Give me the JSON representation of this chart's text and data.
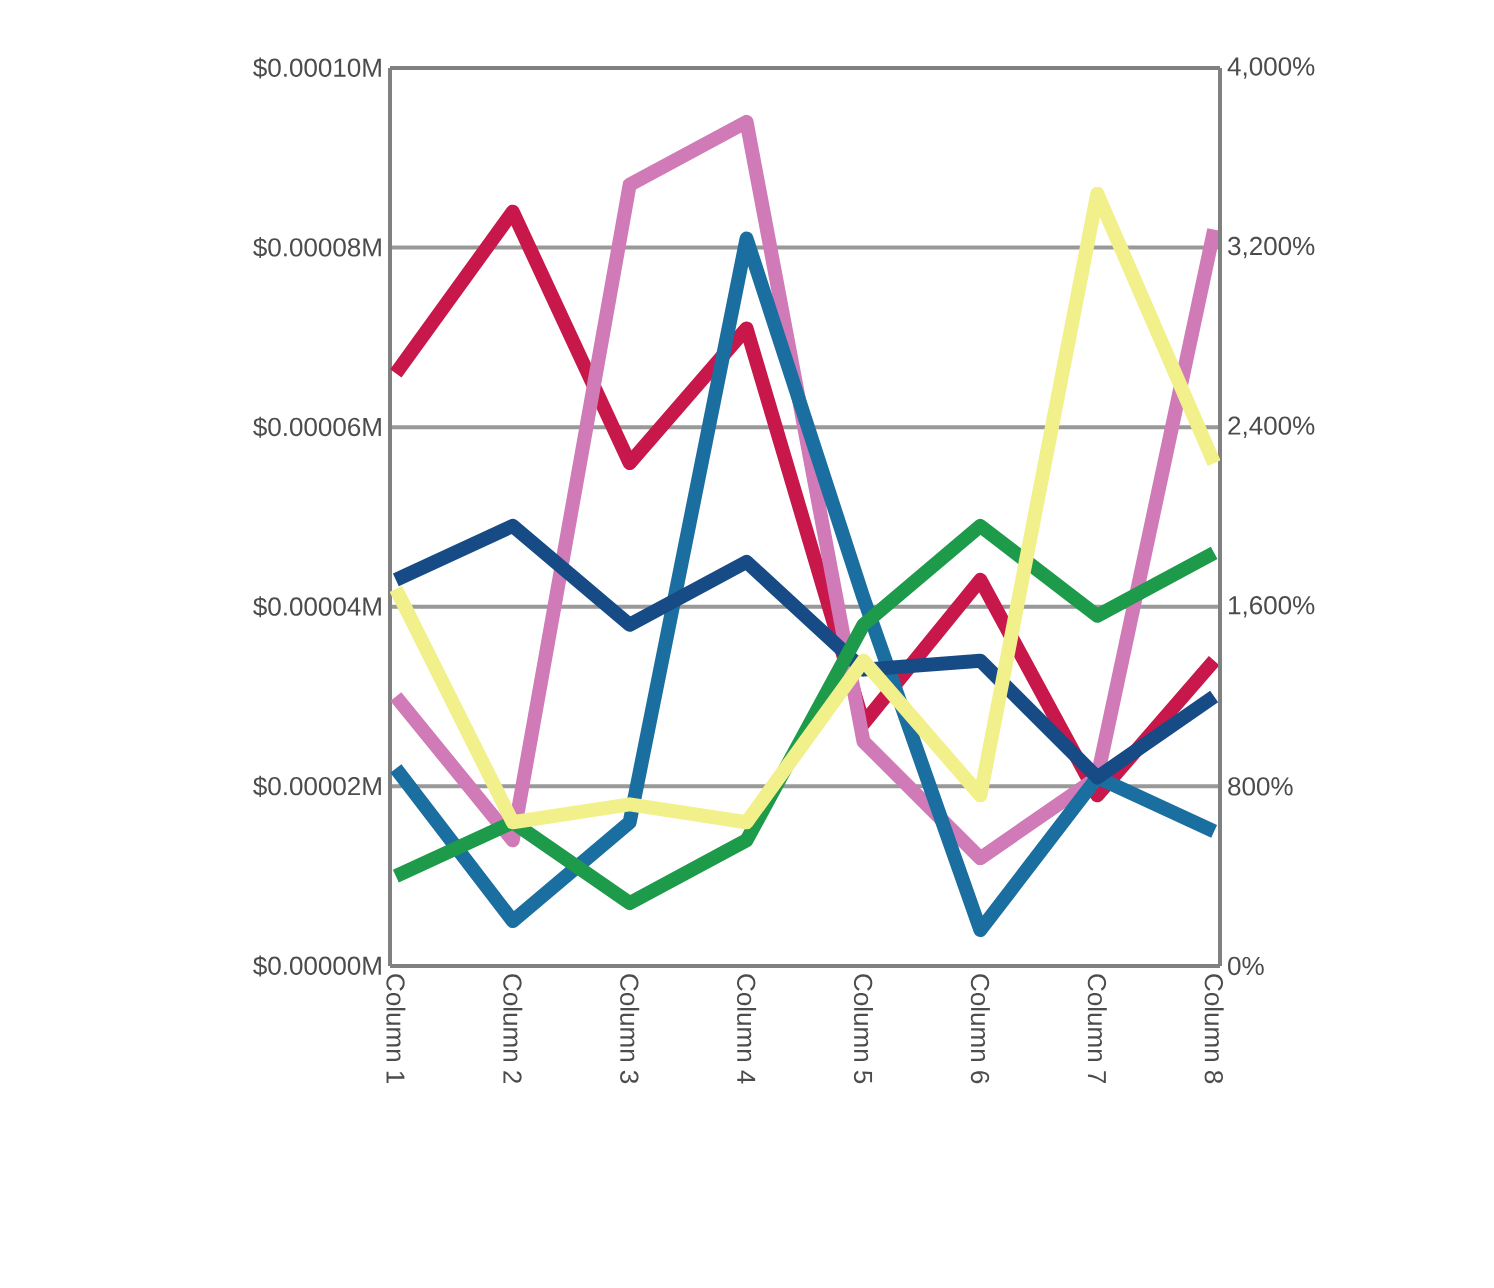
{
  "chart_data": {
    "type": "line",
    "categories": [
      "Column 1",
      "Column 2",
      "Column 3",
      "Column 4",
      "Column 5",
      "Column 6",
      "Column 7",
      "Column 8"
    ],
    "series": [
      {
        "color": "#c8174a",
        "values": [
          6.6e-05,
          8.4e-05,
          5.6e-05,
          7.1e-05,
          2.7e-05,
          4.3e-05,
          1.9e-05,
          3.4e-05
        ]
      },
      {
        "color": "#d07ab8",
        "values": [
          3e-05,
          1.4e-05,
          8.7e-05,
          9.4e-05,
          2.5e-05,
          1.2e-05,
          2.1e-05,
          8.2e-05
        ]
      },
      {
        "color": "#1b6fa0",
        "values": [
          2.2e-05,
          5e-06,
          1.6e-05,
          8.1e-05,
          4.1e-05,
          4e-06,
          2.1e-05,
          1.5e-05
        ]
      },
      {
        "color": "#174b85",
        "values": [
          4.3e-05,
          4.9e-05,
          3.8e-05,
          4.5e-05,
          3.3e-05,
          3.4e-05,
          2.1e-05,
          3e-05
        ]
      },
      {
        "color": "#1d9a4a",
        "values": [
          1e-05,
          1.6e-05,
          7e-06,
          1.4e-05,
          3.8e-05,
          4.9e-05,
          3.9e-05,
          4.6e-05
        ]
      },
      {
        "color": "#f2f08a",
        "axis": "y2",
        "values": [
          1680,
          640,
          720,
          640,
          1360,
          760,
          3440,
          2240
        ]
      }
    ],
    "ylim": [
      0,
      0.0001
    ],
    "yticks": [
      {
        "value": 0,
        "label": "$0.00000M"
      },
      {
        "value": 2e-05,
        "label": "$0.00002M"
      },
      {
        "value": 4e-05,
        "label": "$0.00004M"
      },
      {
        "value": 6e-05,
        "label": "$0.00006M"
      },
      {
        "value": 8e-05,
        "label": "$0.00008M"
      },
      {
        "value": 0.0001,
        "label": "$0.00010M"
      }
    ],
    "y2lim": [
      0,
      4000
    ],
    "y2ticks": [
      {
        "value": 0,
        "label": "0%"
      },
      {
        "value": 800,
        "label": "800%"
      },
      {
        "value": 1600,
        "label": "1,600%"
      },
      {
        "value": 2400,
        "label": "2,400%"
      },
      {
        "value": 3200,
        "label": "3,200%"
      },
      {
        "value": 4000,
        "label": "4,000%"
      }
    ],
    "grid": "y",
    "marker": "none",
    "line_style": "solid"
  }
}
